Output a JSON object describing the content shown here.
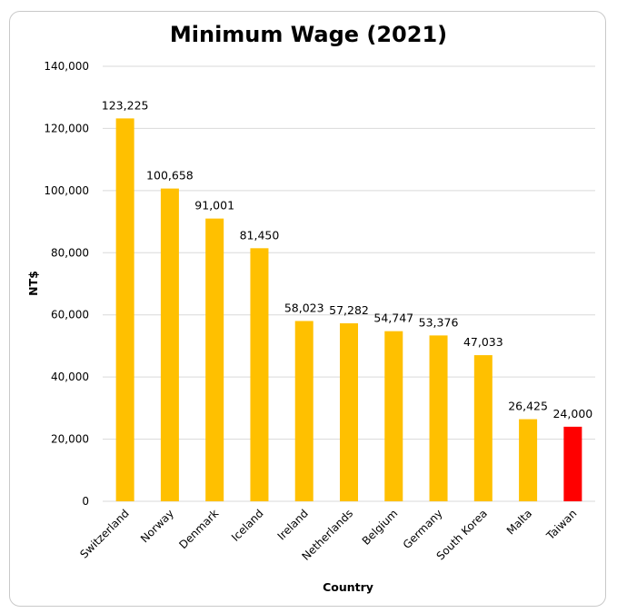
{
  "chart_data": {
    "type": "bar",
    "title": "Minimum Wage (2021)",
    "xlabel": "Country",
    "ylabel": "NT$",
    "ylim": [
      0,
      140000
    ],
    "yticks": [
      0,
      20000,
      40000,
      60000,
      80000,
      100000,
      120000,
      140000
    ],
    "ytick_labels": [
      "0",
      "20,000",
      "40,000",
      "60,000",
      "80,000",
      "100,000",
      "120,000",
      "140,000"
    ],
    "categories": [
      "Switzerland",
      "Norway",
      "Denmark",
      "Iceland",
      "Ireland",
      "Netherlands",
      "Belgium",
      "Germany",
      "South Korea",
      "Malta",
      "Taiwan"
    ],
    "values": [
      123225,
      100658,
      91001,
      81450,
      58023,
      57282,
      54747,
      53376,
      47033,
      26425,
      24000
    ],
    "value_labels": [
      "123,225",
      "100,658",
      "91,001",
      "81,450",
      "58,023",
      "57,282",
      "54,747",
      "53,376",
      "47,033",
      "26,425",
      "24,000"
    ],
    "colors": [
      "#FFC000",
      "#FFC000",
      "#FFC000",
      "#FFC000",
      "#FFC000",
      "#FFC000",
      "#FFC000",
      "#FFC000",
      "#FFC000",
      "#FFC000",
      "#FF0000"
    ],
    "gridlines": true
  }
}
